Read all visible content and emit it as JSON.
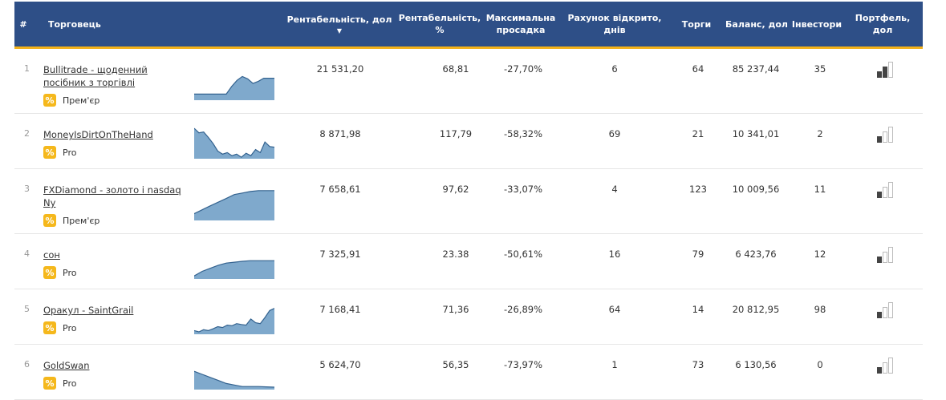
{
  "headers": {
    "idx": "#",
    "trader": "Торговець",
    "profit_usd": "Рентабельність, дол",
    "profit_pct": "Рентабельність, %",
    "drawdown": "Максимальна просадка",
    "days_open": "Рахунок відкрито, днів",
    "trades": "Торги",
    "balance": "Баланс, дол",
    "investors": "Інвестори",
    "portfolio": "Портфель, дол",
    "sort_indicator": "▼"
  },
  "colors": {
    "header_bg": "#2e4f87",
    "header_accent": "#f3b21b",
    "tag_bg": "#f5b81c",
    "spark_fill": "#7fa9cc",
    "spark_line": "#33628f"
  },
  "rows": [
    {
      "idx": "1",
      "name": "Bullitrade - щоденний посібник з торгівлі",
      "tag_icon": "%",
      "tag": "Прем'єр",
      "profit_usd": "21 531,20",
      "profit_pct": "68,81",
      "drawdown": "-27,70%",
      "days": "6",
      "trades": "64",
      "balance": "85 237,44",
      "investors": "35",
      "portfolio_level": 2,
      "spark": [
        0.2,
        0.2,
        0.2,
        0.2,
        0.2,
        0.2,
        0.2,
        0.45,
        0.65,
        0.78,
        0.7,
        0.55,
        0.62,
        0.72,
        0.72,
        0.72
      ]
    },
    {
      "idx": "2",
      "name": "MoneyIsDirtOnTheHand",
      "tag_icon": "%",
      "tag": "Pro",
      "profit_usd": "8 871,98",
      "profit_pct": "117,79",
      "drawdown": "-58,32%",
      "days": "69",
      "trades": "21",
      "balance": "10 341,01",
      "investors": "2",
      "portfolio_level": 1,
      "spark": [
        1.0,
        0.85,
        0.88,
        0.7,
        0.5,
        0.25,
        0.15,
        0.2,
        0.1,
        0.15,
        0.05,
        0.18,
        0.1,
        0.3,
        0.2,
        0.55,
        0.4,
        0.38
      ]
    },
    {
      "idx": "3",
      "name": "FXDiamond - золото і nasdaq Ny",
      "tag_icon": "%",
      "tag": "Прем'єр",
      "profit_usd": "7 658,61",
      "profit_pct": "97,62",
      "drawdown": "-33,07%",
      "days": "4",
      "trades": "123",
      "balance": "10 009,56",
      "investors": "11",
      "portfolio_level": 1,
      "spark": [
        0.22,
        0.35,
        0.48,
        0.6,
        0.72,
        0.85,
        0.9,
        0.95,
        0.98,
        0.98,
        0.98
      ]
    },
    {
      "idx": "4",
      "name": "сон",
      "tag_icon": "%",
      "tag": "Pro",
      "profit_usd": "7 325,91",
      "profit_pct": "23.38",
      "drawdown": "-50,61%",
      "days": "16",
      "trades": "79",
      "balance": "6 423,76",
      "investors": "12",
      "portfolio_level": 1,
      "spark": [
        0.1,
        0.25,
        0.35,
        0.45,
        0.52,
        0.55,
        0.58,
        0.6,
        0.6,
        0.6,
        0.6
      ]
    },
    {
      "idx": "5",
      "name": "Оракул - SaintGrail",
      "tag_icon": "%",
      "tag": "Pro",
      "profit_usd": "7 168,41",
      "profit_pct": "71,36",
      "drawdown": "-26,89%",
      "days": "64",
      "trades": "14",
      "balance": "20 812,95",
      "investors": "98",
      "portfolio_level": 1,
      "spark": [
        0.12,
        0.08,
        0.15,
        0.12,
        0.18,
        0.25,
        0.22,
        0.3,
        0.28,
        0.35,
        0.32,
        0.3,
        0.5,
        0.38,
        0.35,
        0.55,
        0.78,
        0.85
      ]
    },
    {
      "idx": "6",
      "name": "GoldSwan",
      "tag_icon": "%",
      "tag": "Pro",
      "profit_usd": "5 624,70",
      "profit_pct": "56,35",
      "drawdown": "-73,97%",
      "days": "1",
      "trades": "73",
      "balance": "6 130,56",
      "investors": "0",
      "portfolio_level": 1,
      "spark": [
        0.6,
        0.5,
        0.4,
        0.3,
        0.2,
        0.15,
        0.1,
        0.1,
        0.1,
        0.09,
        0.08
      ]
    }
  ]
}
